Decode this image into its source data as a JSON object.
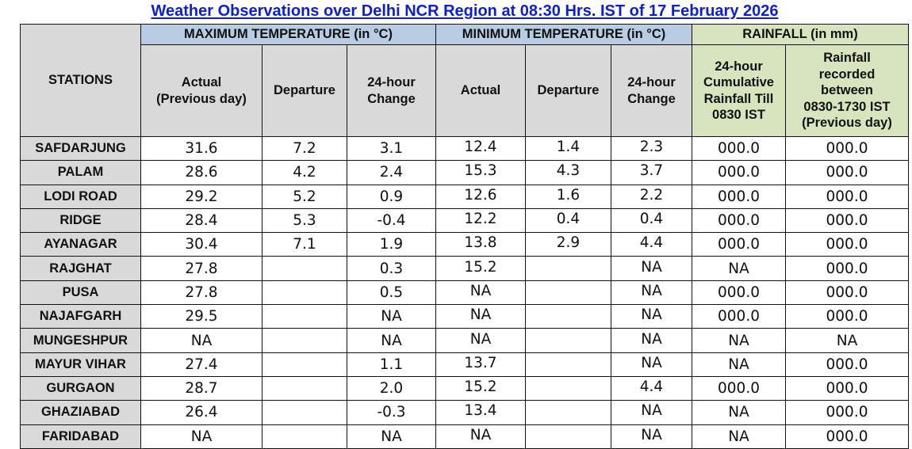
{
  "title": "Weather Observations over Delhi NCR Region at 08:30 Hrs. IST of 17 February 2026",
  "header": {
    "stations": "STATIONS",
    "groups": {
      "max_temp": "MAXIMUM TEMPERATURE (in °C)",
      "min_temp": "MINIMUM TEMPERATURE (in °C)",
      "rainfall": "RAINFALL (in mm)"
    },
    "max_cols": {
      "actual_line1": "Actual",
      "actual_line2": "(Previous day)",
      "departure": "Departure",
      "change_line1": "24-hour",
      "change_line2": "Change"
    },
    "min_cols": {
      "actual": "Actual",
      "departure": "Departure",
      "change_line1": "24-hour",
      "change_line2": "Change"
    },
    "rain_cols": {
      "cum_line1": "24-hour",
      "cum_line2": "Cumulative",
      "cum_line3": "Rainfall Till",
      "cum_line4": "0830 IST",
      "rec_line1": "Rainfall",
      "rec_line2": "recorded",
      "rec_line3": "between",
      "rec_line4": "0830-1730 IST",
      "rec_line5": "(Previous day)"
    }
  },
  "colors": {
    "title": "#0b1fd0",
    "temp_header_bg": "#b8cce4",
    "rain_header_bg": "#d7e4bd",
    "gray_header_bg": "#d9d9d9"
  },
  "rows": [
    {
      "station": "SAFDARJUNG",
      "max_actual": "31.6",
      "max_departure": "7.2",
      "max_change": "3.1",
      "min_actual": "12.4",
      "min_departure": "1.4",
      "min_change": "2.3",
      "rain_cum": "000.0",
      "rain_recorded": "000.0"
    },
    {
      "station": "PALAM",
      "max_actual": "28.6",
      "max_departure": "4.2",
      "max_change": "2.4",
      "min_actual": "15.3",
      "min_departure": "4.3",
      "min_change": "3.7",
      "rain_cum": "000.0",
      "rain_recorded": "000.0"
    },
    {
      "station": "LODI ROAD",
      "max_actual": "29.2",
      "max_departure": "5.2",
      "max_change": "0.9",
      "min_actual": "12.6",
      "min_departure": "1.6",
      "min_change": "2.2",
      "rain_cum": "000.0",
      "rain_recorded": "000.0"
    },
    {
      "station": "RIDGE",
      "max_actual": "28.4",
      "max_departure": "5.3",
      "max_change": "-0.4",
      "min_actual": "12.2",
      "min_departure": "0.4",
      "min_change": "0.4",
      "rain_cum": "000.0",
      "rain_recorded": "000.0"
    },
    {
      "station": "AYANAGAR",
      "max_actual": "30.4",
      "max_departure": "7.1",
      "max_change": "1.9",
      "min_actual": "13.8",
      "min_departure": "2.9",
      "min_change": "4.4",
      "rain_cum": "000.0",
      "rain_recorded": "000.0"
    },
    {
      "station": "RAJGHAT",
      "max_actual": "27.8",
      "max_departure": "",
      "max_change": "0.3",
      "min_actual": "15.2",
      "min_departure": "",
      "min_change": "NA",
      "rain_cum": "NA",
      "rain_recorded": "000.0"
    },
    {
      "station": "PUSA",
      "max_actual": "27.8",
      "max_departure": "",
      "max_change": "0.5",
      "min_actual": "NA",
      "min_departure": "",
      "min_change": "NA",
      "rain_cum": "000.0",
      "rain_recorded": "000.0"
    },
    {
      "station": "NAJAFGARH",
      "max_actual": "29.5",
      "max_departure": "",
      "max_change": "NA",
      "min_actual": "NA",
      "min_departure": "",
      "min_change": "NA",
      "rain_cum": "000.0",
      "rain_recorded": "000.0"
    },
    {
      "station": "MUNGESHPUR",
      "max_actual": "NA",
      "max_departure": "",
      "max_change": "NA",
      "min_actual": "NA",
      "min_departure": "",
      "min_change": "NA",
      "rain_cum": "NA",
      "rain_recorded": "NA"
    },
    {
      "station": "MAYUR VIHAR",
      "max_actual": "27.4",
      "max_departure": "",
      "max_change": "1.1",
      "min_actual": "13.7",
      "min_departure": "",
      "min_change": "NA",
      "rain_cum": "NA",
      "rain_recorded": "000.0"
    },
    {
      "station": "GURGAON",
      "max_actual": "28.7",
      "max_departure": "",
      "max_change": "2.0",
      "min_actual": "15.2",
      "min_departure": "",
      "min_change": "4.4",
      "rain_cum": "000.0",
      "rain_recorded": "000.0"
    },
    {
      "station": "GHAZIABAD",
      "max_actual": "26.4",
      "max_departure": "",
      "max_change": "-0.3",
      "min_actual": "13.4",
      "min_departure": "",
      "min_change": "NA",
      "rain_cum": "NA",
      "rain_recorded": "000.0"
    },
    {
      "station": "FARIDABAD",
      "max_actual": "NA",
      "max_departure": "",
      "max_change": "NA",
      "min_actual": "NA",
      "min_departure": "",
      "min_change": "NA",
      "rain_cum": "NA",
      "rain_recorded": "000.0"
    }
  ]
}
